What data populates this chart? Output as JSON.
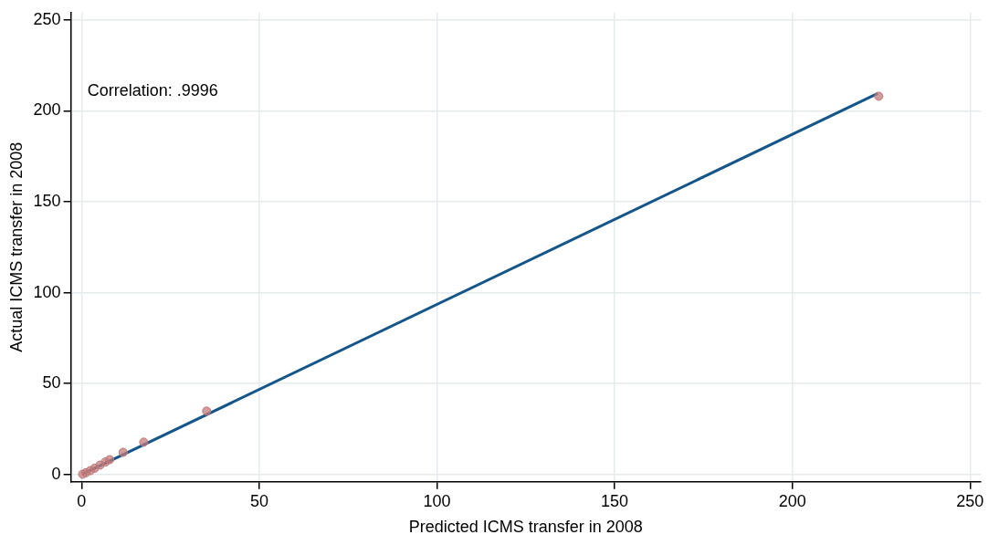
{
  "chart_data": {
    "type": "scatter",
    "xlabel": "Predicted ICMS transfer in 2008",
    "ylabel": "Actual ICMS transfer in 2008",
    "annotations": [
      "Correlation: .9996"
    ],
    "series": [
      {
        "type": "scatter",
        "color": "#c07878",
        "marker": "circle",
        "x": [
          0.3,
          1.2,
          2.5,
          3.7,
          5.2,
          6.7,
          7.9,
          11.7,
          17.5,
          35.2,
          224.3
        ],
        "values": [
          0.2,
          1.0,
          2.2,
          3.5,
          5.2,
          6.9,
          8.2,
          12.2,
          17.8,
          34.9,
          208
        ]
      },
      {
        "type": "line",
        "color": "#14568a",
        "line_style": "solid",
        "x": [
          0.3,
          224
        ],
        "values": [
          0.3,
          209.5
        ]
      }
    ],
    "xlim": [
      -3,
      253
    ],
    "ylim": [
      -4,
      254
    ],
    "xticks": [
      0,
      50,
      100,
      150,
      200,
      250
    ],
    "yticks": [
      0,
      50,
      100,
      150,
      200,
      250
    ],
    "grid": true,
    "legend": false
  }
}
